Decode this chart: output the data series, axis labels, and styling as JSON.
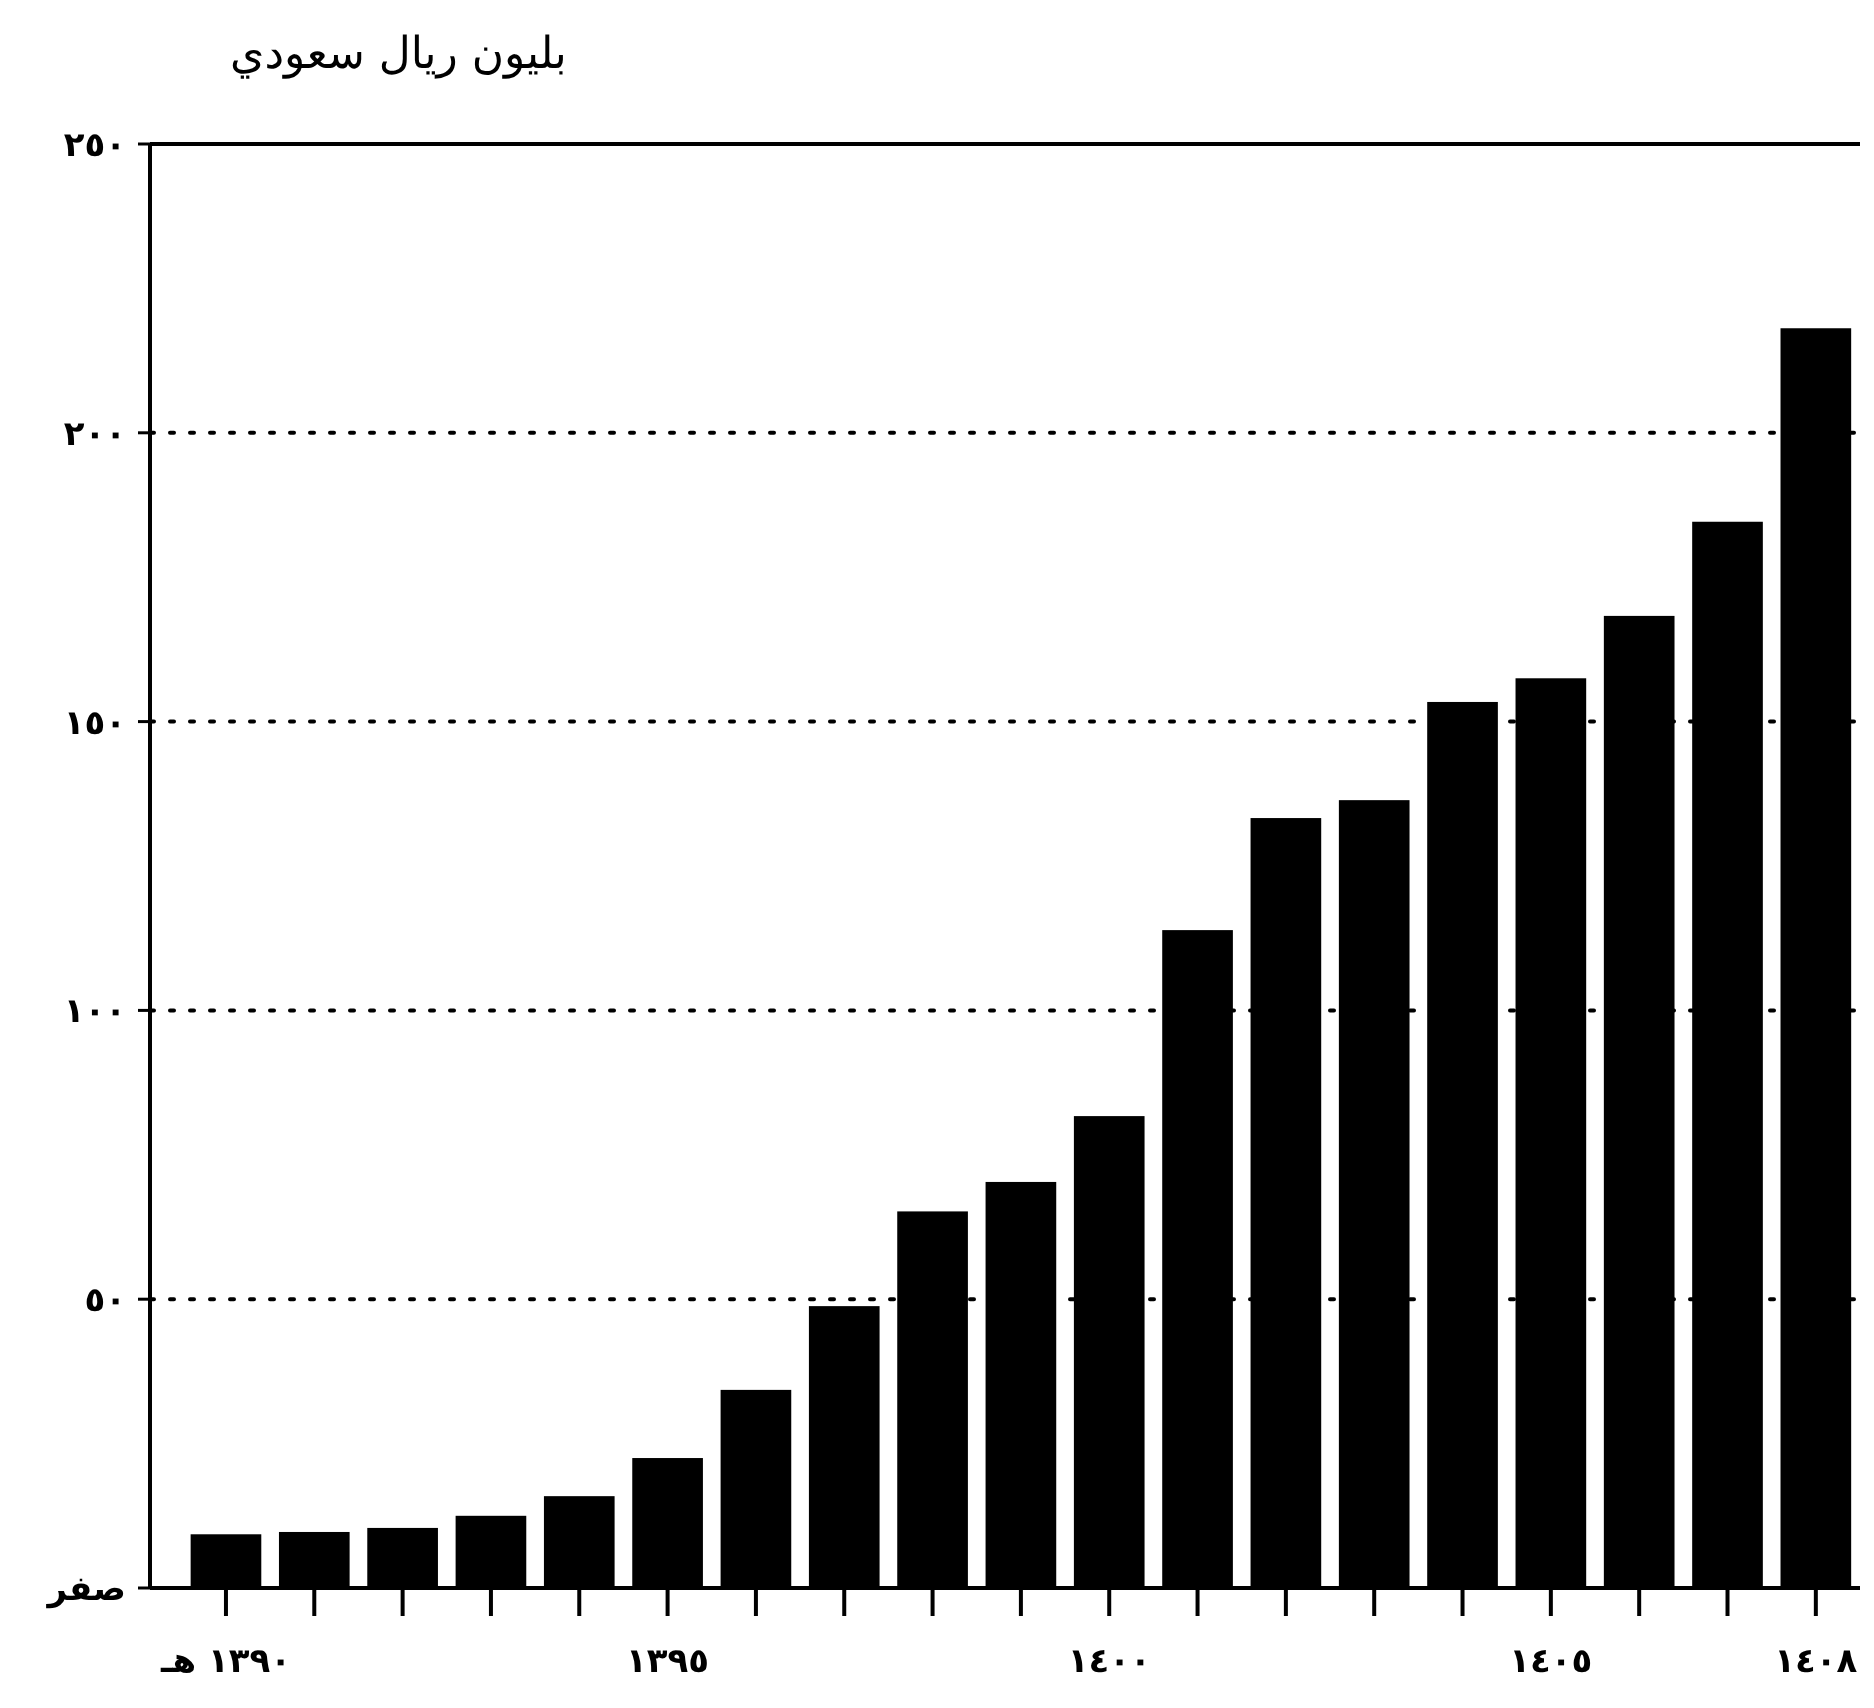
{
  "chart_data": {
    "type": "bar",
    "ylabel": "بليون ريال سعودي",
    "categories": [
      "١٣٩٠ هـ",
      null,
      null,
      null,
      null,
      "١٣٩٥",
      null,
      null,
      null,
      null,
      "١٤٠٠",
      null,
      null,
      null,
      null,
      "١٤٠٥",
      null,
      null,
      "١٤٠٨"
    ],
    "values": [
      9.3,
      9.7,
      10.4,
      12.5,
      15.9,
      22.5,
      34.3,
      48.8,
      65.2,
      70.3,
      81.7,
      113.9,
      133.3,
      136.4,
      153.4,
      157.5,
      168.3,
      184.6,
      218.1
    ],
    "color": "#000000",
    "ylim": [
      0,
      250
    ],
    "yticks": [
      {
        "value": 0,
        "label": "صفر"
      },
      {
        "value": 50,
        "label": "٥٠"
      },
      {
        "value": 100,
        "label": "١٠٠"
      },
      {
        "value": 150,
        "label": "١٥٠"
      },
      {
        "value": 200,
        "label": "٢٠٠"
      },
      {
        "value": 250,
        "label": "٢٥٠"
      }
    ],
    "grid": "y"
  }
}
